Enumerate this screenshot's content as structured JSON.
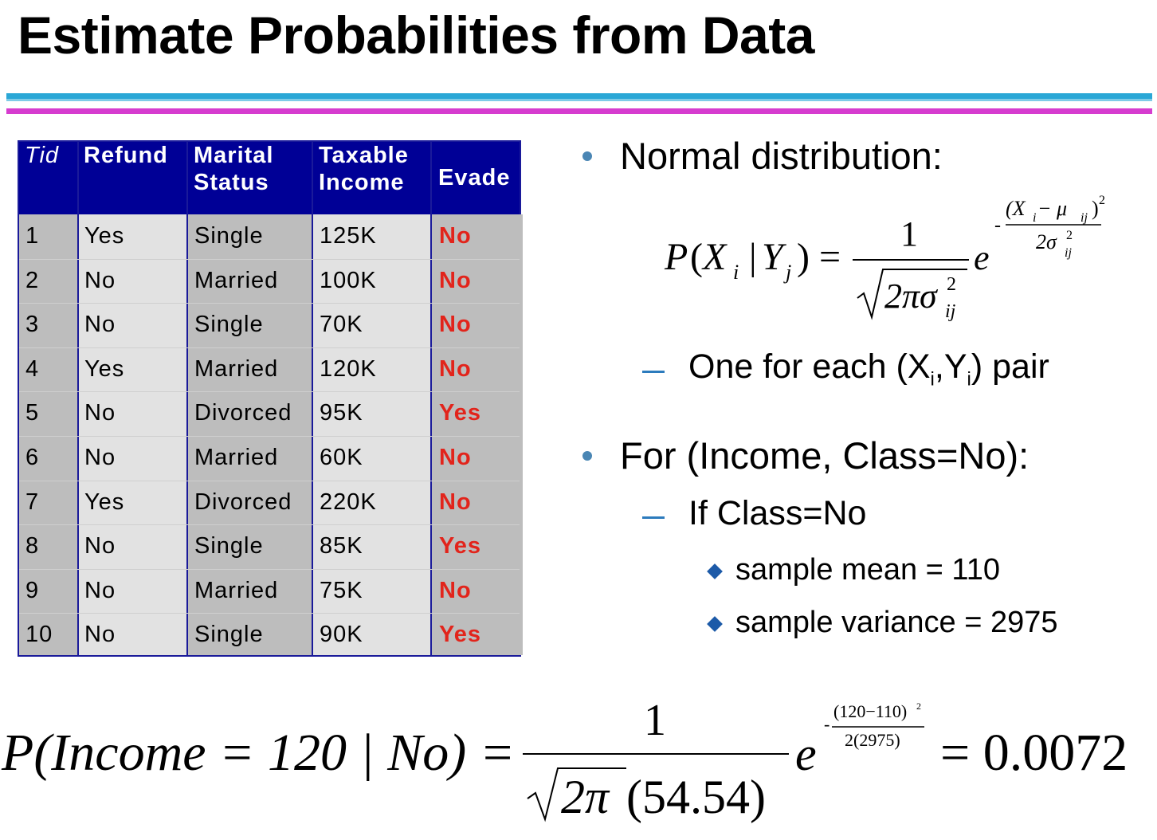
{
  "title": "Estimate Probabilities from Data",
  "table": {
    "headers": [
      {
        "line1": "Tid",
        "line2": ""
      },
      {
        "line1": "Refund",
        "line2": ""
      },
      {
        "line1": "Marital",
        "line2": "Status"
      },
      {
        "line1": "Taxable",
        "line2": "Income"
      },
      {
        "line1": "Evade",
        "line2": ""
      }
    ],
    "rows": [
      [
        "1",
        "Yes",
        "Single",
        "125K",
        "No"
      ],
      [
        "2",
        "No",
        "Married",
        "100K",
        "No"
      ],
      [
        "3",
        "No",
        "Single",
        "70K",
        "No"
      ],
      [
        "4",
        "Yes",
        "Married",
        "120K",
        "No"
      ],
      [
        "5",
        "No",
        "Divorced",
        "95K",
        "Yes"
      ],
      [
        "6",
        "No",
        "Married",
        "60K",
        "No"
      ],
      [
        "7",
        "Yes",
        "Divorced",
        "220K",
        "No"
      ],
      [
        "8",
        "No",
        "Single",
        "85K",
        "Yes"
      ],
      [
        "9",
        "No",
        "Married",
        "75K",
        "No"
      ],
      [
        "10",
        "No",
        "Single",
        "90K",
        "Yes"
      ]
    ]
  },
  "bullets": {
    "b1": "Normal distribution:",
    "b1_sub": "One for each (X",
    "b1_sub_i": "i",
    "b1_sub_comma": ",Y",
    "b1_sub_i2": "i",
    "b1_sub_end": ") pair",
    "b2": "For (Income, Class=No):",
    "b2_sub": "If Class=No",
    "b2_items": [
      "sample mean = 110",
      "sample variance = 2975"
    ]
  },
  "formula1": {
    "lhs_P": "P",
    "lhs_X": "X",
    "lhs_i": "i",
    "lhs_Y": "Y",
    "lhs_j": "j",
    "one": "1",
    "sqrt_body": "2πσ",
    "sigma_sup": "2",
    "sigma_sub": "ij",
    "e": "e",
    "exp_num": "(X",
    "exp_num_i": "i",
    "exp_num_mid": " − μ",
    "exp_num_ij": "ij",
    "exp_num_end": ")",
    "exp_num_sup": "2",
    "exp_den": "2σ",
    "exp_den_sup": "2",
    "exp_den_sub": "ij"
  },
  "formula2": {
    "lhs": "P(Income = 120 | No) =",
    "one": "1",
    "den_sqrt": "2π",
    "den_rest": "(54.54)",
    "e": "e",
    "exp_num": "(120−110)",
    "exp_num_sup": "2",
    "exp_den": "2(2975)",
    "result": "= 0.0072"
  }
}
